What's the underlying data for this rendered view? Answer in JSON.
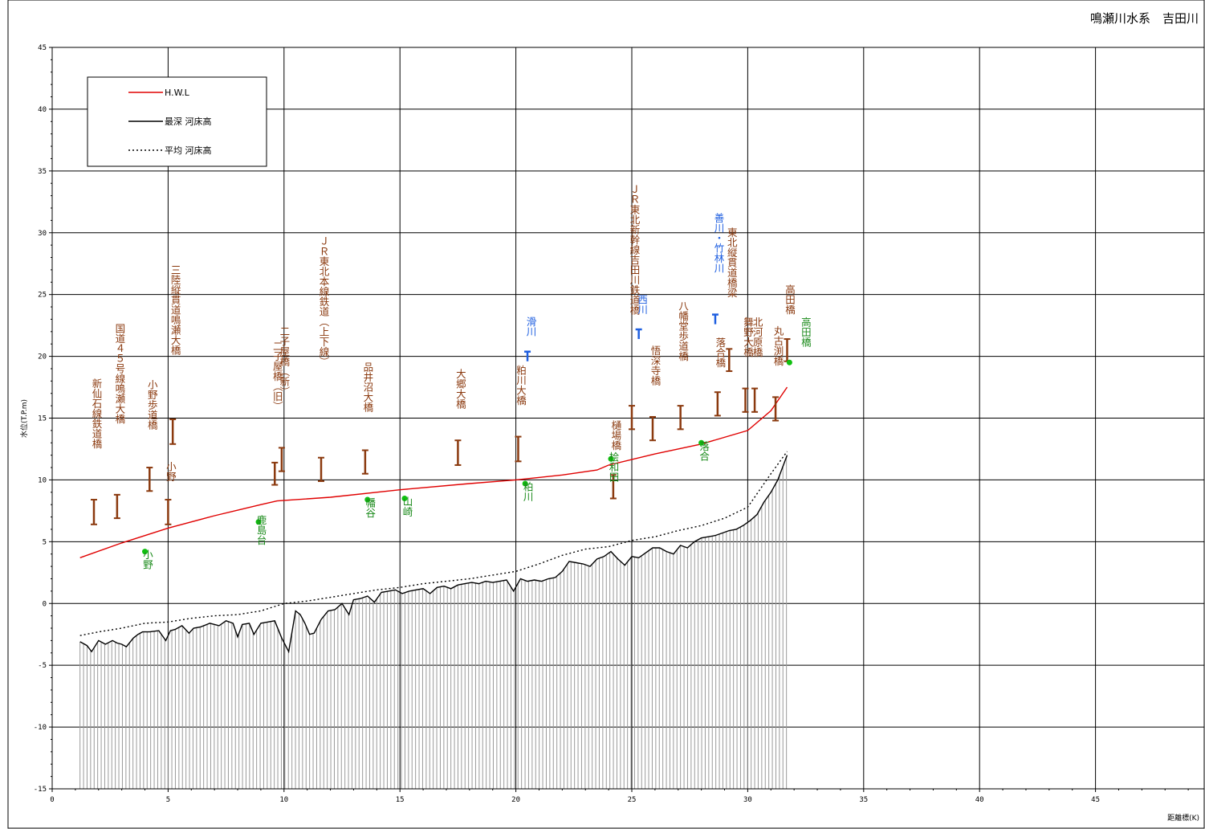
{
  "title": "鳴瀬川水系　吉田川",
  "chart_data": {
    "type": "line",
    "title": "鳴瀬川水系　吉田川",
    "xlabel": "距離標(K)",
    "ylabel": "水位(T.P.m)",
    "xlim": [
      0,
      50
    ],
    "ylim": [
      -15,
      45
    ],
    "x_ticks": [
      0,
      5,
      10,
      15,
      20,
      25,
      30,
      35,
      40,
      45
    ],
    "y_ticks": [
      -15,
      -10,
      -5,
      0,
      5,
      10,
      15,
      20,
      25,
      30,
      35,
      40,
      45
    ],
    "grid": true,
    "legend_position": "top-left",
    "series": [
      {
        "name": "H.W.L",
        "color": "#e00000",
        "style": "solid",
        "x": [
          1.2,
          3,
          5,
          7,
          9,
          9.7,
          12,
          15,
          18,
          20,
          22,
          23.5,
          24,
          26,
          28,
          30,
          31,
          31.7
        ],
        "y": [
          3.7,
          4.9,
          6.1,
          7.1,
          8.0,
          8.3,
          8.6,
          9.2,
          9.7,
          10.0,
          10.4,
          10.8,
          11.2,
          12.1,
          12.9,
          14.0,
          15.6,
          17.5
        ]
      },
      {
        "name": "最深 河床高",
        "color": "#000000",
        "style": "solid",
        "x": [
          1.2,
          1.5,
          1.7,
          2.0,
          2.3,
          2.6,
          2.8,
          3.0,
          3.2,
          3.5,
          3.7,
          3.9,
          4.2,
          4.6,
          4.9,
          5.1,
          5.3,
          5.6,
          5.9,
          6.1,
          6.4,
          6.8,
          7.2,
          7.5,
          7.8,
          8.0,
          8.2,
          8.5,
          8.7,
          9.0,
          9.3,
          9.6,
          9.9,
          10.2,
          10.5,
          10.7,
          10.9,
          11.1,
          11.3,
          11.6,
          11.9,
          12.2,
          12.5,
          12.8,
          13.0,
          13.3,
          13.6,
          13.9,
          14.2,
          14.5,
          14.8,
          15.1,
          15.4,
          15.7,
          16.0,
          16.3,
          16.6,
          16.9,
          17.2,
          17.5,
          17.8,
          18.1,
          18.4,
          18.7,
          19.0,
          19.3,
          19.6,
          19.9,
          20.2,
          20.5,
          20.8,
          21.1,
          21.4,
          21.7,
          22.0,
          22.3,
          22.6,
          22.9,
          23.2,
          23.5,
          23.8,
          24.1,
          24.4,
          24.7,
          25.0,
          25.3,
          25.6,
          25.9,
          26.2,
          26.5,
          26.8,
          27.1,
          27.4,
          27.7,
          28.0,
          28.3,
          28.6,
          28.9,
          29.2,
          29.5,
          29.8,
          30.1,
          30.4,
          30.7,
          31.0,
          31.3,
          31.7
        ],
        "y": [
          -3.1,
          -3.4,
          -3.9,
          -3.0,
          -3.3,
          -3.0,
          -3.2,
          -3.3,
          -3.5,
          -2.8,
          -2.5,
          -2.3,
          -2.3,
          -2.2,
          -3.0,
          -2.2,
          -2.1,
          -1.8,
          -2.4,
          -2.0,
          -1.9,
          -1.6,
          -1.8,
          -1.4,
          -1.6,
          -2.7,
          -1.7,
          -1.6,
          -2.5,
          -1.6,
          -1.5,
          -1.4,
          -2.8,
          -3.9,
          -0.6,
          -0.9,
          -1.6,
          -2.5,
          -2.4,
          -1.3,
          -0.6,
          -0.5,
          0.0,
          -0.9,
          0.3,
          0.4,
          0.6,
          0.1,
          0.9,
          1.0,
          1.1,
          0.8,
          1.0,
          1.1,
          1.2,
          0.8,
          1.3,
          1.4,
          1.2,
          1.5,
          1.6,
          1.7,
          1.6,
          1.8,
          1.7,
          1.8,
          1.9,
          1.0,
          2.0,
          1.8,
          1.9,
          1.8,
          2.0,
          2.1,
          2.6,
          3.4,
          3.3,
          3.2,
          3.0,
          3.6,
          3.8,
          4.2,
          3.6,
          3.1,
          3.8,
          3.7,
          4.1,
          4.5,
          4.5,
          4.2,
          4.0,
          4.7,
          4.5,
          5.0,
          5.3,
          5.4,
          5.5,
          5.7,
          5.9,
          6.0,
          6.3,
          6.7,
          7.2,
          8.2,
          9.0,
          10.0,
          12.0
        ]
      },
      {
        "name": "平均 河床高",
        "color": "#000000",
        "style": "dotted",
        "x": [
          1.2,
          2.0,
          3.0,
          4.0,
          5.0,
          6.0,
          7.0,
          8.0,
          9.0,
          10.0,
          11.0,
          12.0,
          13.0,
          14.0,
          15.0,
          16.0,
          17.0,
          18.0,
          19.0,
          20.0,
          21.0,
          22.0,
          23.0,
          24.0,
          25.0,
          26.0,
          27.0,
          28.0,
          29.0,
          30.0,
          31.0,
          31.7
        ],
        "y": [
          -2.6,
          -2.3,
          -2.0,
          -1.6,
          -1.5,
          -1.2,
          -1.0,
          -0.9,
          -0.6,
          0.0,
          0.2,
          0.5,
          0.8,
          1.1,
          1.3,
          1.6,
          1.8,
          2.0,
          2.3,
          2.6,
          3.2,
          3.9,
          4.4,
          4.6,
          5.1,
          5.4,
          5.9,
          6.3,
          6.9,
          7.8,
          10.5,
          12.3
        ]
      }
    ],
    "bridges": [
      {
        "name": "新仙石線鉄道橋",
        "x": 1.8,
        "y_low": 6.4,
        "y_high": 8.4
      },
      {
        "name": "国道４５号線鳴瀬大橋",
        "x": 2.8,
        "y_low": 6.9,
        "y_high": 8.8
      },
      {
        "name": "小野歩道橋",
        "x": 4.2,
        "y_low": 9.1,
        "y_high": 11.0
      },
      {
        "name": "小野",
        "x": 5.0,
        "y_low": 6.4,
        "y_high": 8.4
      },
      {
        "name": "三陸縦貫道鳴瀬大橋",
        "x": 5.2,
        "y_low": 12.9,
        "y_high": 14.9
      },
      {
        "name": "二子屋橋（旧）",
        "x": 9.6,
        "y_low": 9.6,
        "y_high": 11.4
      },
      {
        "name": "二子屋橋（新）",
        "x": 9.9,
        "y_low": 10.7,
        "y_high": 12.6
      },
      {
        "name": "ＪＲ東北本線鉄道（上下線）",
        "x": 11.6,
        "y_low": 9.9,
        "y_high": 11.8
      },
      {
        "name": "品井沼大橋",
        "x": 13.5,
        "y_low": 10.5,
        "y_high": 12.4
      },
      {
        "name": "大郷大橋",
        "x": 17.5,
        "y_low": 11.2,
        "y_high": 13.2
      },
      {
        "name": "粕川大橋",
        "x": 20.1,
        "y_low": 11.5,
        "y_high": 13.5
      },
      {
        "name": "樋場橋",
        "x": 24.2,
        "y_low": 8.5,
        "y_high": 10.4
      },
      {
        "name": "ＪＲ東北新幹線吉田川鉄道橋",
        "x": 25.0,
        "y_low": 14.1,
        "y_high": 16.0
      },
      {
        "name": "悟深寺橋",
        "x": 25.9,
        "y_low": 13.2,
        "y_high": 15.1
      },
      {
        "name": "八幡堂歩道橋",
        "x": 27.1,
        "y_low": 14.1,
        "y_high": 16.0
      },
      {
        "name": "落合橋",
        "x": 28.7,
        "y_low": 15.2,
        "y_high": 17.1
      },
      {
        "name": "東北縦貫道橋梁",
        "x": 29.2,
        "y_low": 18.8,
        "y_high": 20.6
      },
      {
        "name": "舞野大橋",
        "x": 29.9,
        "y_low": 15.5,
        "y_high": 17.4
      },
      {
        "name": "北河原橋",
        "x": 30.3,
        "y_low": 15.5,
        "y_high": 17.4
      },
      {
        "name": "丸古渕橋",
        "x": 31.2,
        "y_low": 14.8,
        "y_high": 16.7
      },
      {
        "name": "高田橋",
        "x": 31.7,
        "y_low": 19.6,
        "y_high": 21.4
      }
    ],
    "tributaries": [
      {
        "name": "滑川",
        "x": 20.5,
        "y": 19.6
      },
      {
        "name": "西川",
        "x": 25.3,
        "y": 21.4
      },
      {
        "name": "善川・竹林川",
        "x": 28.6,
        "y": 22.6
      }
    ],
    "locations": [
      {
        "name": "小野",
        "x": 4.0,
        "y": 4.2
      },
      {
        "name": "鹿島台",
        "x": 8.9,
        "y": 6.6
      },
      {
        "name": "幡谷",
        "x": 13.6,
        "y": 8.4
      },
      {
        "name": "山崎",
        "x": 15.2,
        "y": 8.5
      },
      {
        "name": "粕川",
        "x": 20.4,
        "y": 9.7
      },
      {
        "name": "桧和田",
        "x": 24.1,
        "y": 11.7
      },
      {
        "name": "落合",
        "x": 28.0,
        "y": 13.0
      },
      {
        "name": "高田橋",
        "x": 31.8,
        "y": 19.5
      }
    ],
    "colors": {
      "hwl": "#e00000",
      "bed": "#000000",
      "bridge": "#8b3a0f",
      "tributary": "#1f5fe0",
      "location": "#1a8a1a",
      "hatch": "#9a9a9a"
    }
  }
}
